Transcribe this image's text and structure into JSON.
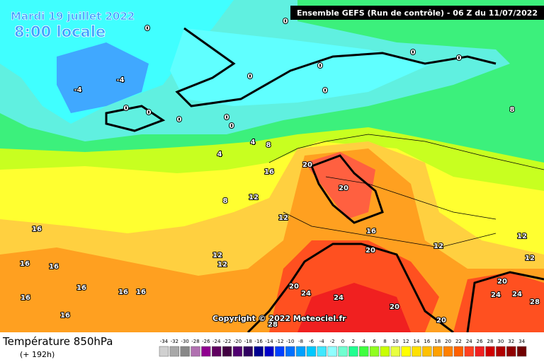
{
  "header": {
    "date": "Mardi 19 juillet 2022",
    "local_time": "8:00 locale",
    "run_info": "Ensemble GEFS  (Run de contrôle)  -  06 Z du 11/07/2022"
  },
  "copyright": "Copyright © 2022 Meteociel.fr",
  "footer": {
    "parameter": "Température 850hPa",
    "lead_time": "(+ 192h)"
  },
  "map": {
    "contour_labels": [
      0,
      0,
      0,
      0,
      0,
      0,
      0,
      0,
      0,
      0,
      0,
      0,
      -4,
      -4,
      4,
      4,
      8,
      8,
      8,
      12,
      12,
      12,
      12,
      12,
      12,
      12,
      16,
      16,
      16,
      16,
      16,
      16,
      16,
      16,
      16,
      16,
      20,
      20,
      20,
      20,
      20,
      20,
      20,
      24,
      24,
      24,
      24,
      28,
      28
    ]
  },
  "legend": {
    "labels": [
      -34,
      -32,
      -30,
      -28,
      -26,
      -24,
      -22,
      -20,
      -18,
      -16,
      -14,
      -12,
      -10,
      -8,
      -6,
      -4,
      -2,
      0,
      2,
      4,
      6,
      8,
      10,
      12,
      14,
      16,
      18,
      20,
      22,
      24,
      26,
      28,
      30,
      32,
      34
    ],
    "colors": [
      "#d0d0d0",
      "#a8a8a8",
      "#888888",
      "#b070b0",
      "#900090",
      "#600060",
      "#400040",
      "#500070",
      "#300060",
      "#000090",
      "#0000c8",
      "#0040ff",
      "#0070ff",
      "#00a0ff",
      "#00c8ff",
      "#40e8ff",
      "#90ffff",
      "#70ffd0",
      "#20ff90",
      "#40ff40",
      "#90ff20",
      "#c8ff00",
      "#e8ff40",
      "#ffff00",
      "#ffe000",
      "#ffc000",
      "#ffa000",
      "#ff8000",
      "#ff6000",
      "#ff4020",
      "#f02020",
      "#d00000",
      "#b00000",
      "#900000",
      "#700000"
    ]
  }
}
